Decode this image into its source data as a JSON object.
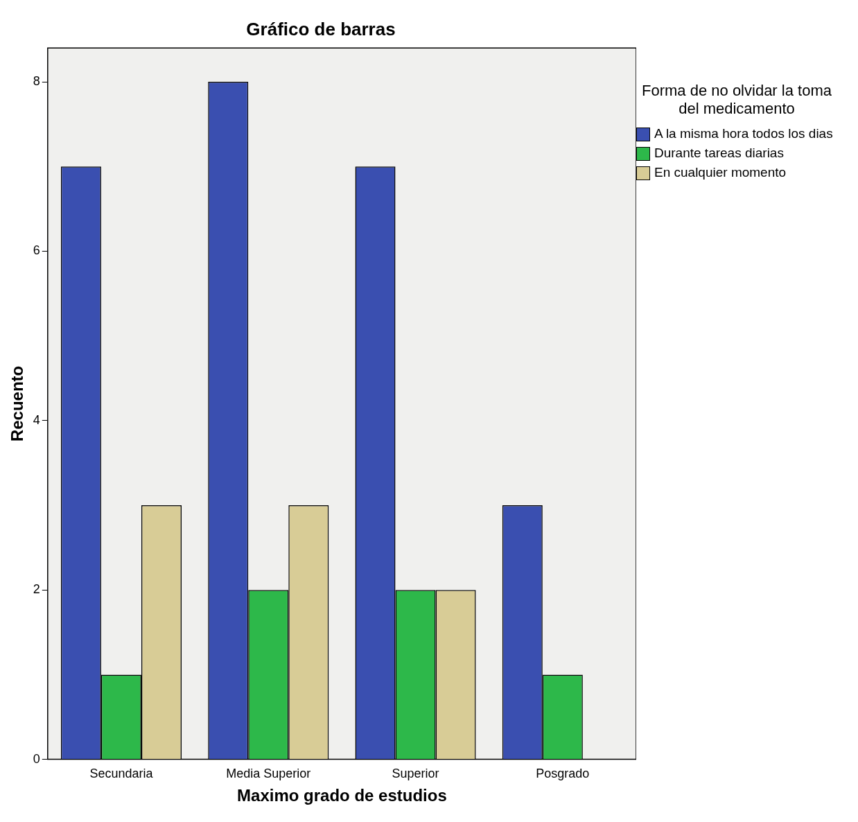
{
  "chart_data": {
    "type": "bar",
    "title": "Gráfico de barras",
    "xlabel": "Maximo grado de estudios",
    "ylabel": "Recuento",
    "legend_title": "Forma de no olvidar la toma del medicamento",
    "categories": [
      "Secundaria",
      "Media Superior",
      "Superior",
      "Posgrado"
    ],
    "series": [
      {
        "name": "A la misma hora todos los dias",
        "color": "#3a4fb0",
        "values": [
          7,
          8,
          7,
          3
        ]
      },
      {
        "name": "Durante tareas diarias",
        "color": "#2db84a",
        "values": [
          1,
          2,
          2,
          1
        ]
      },
      {
        "name": "En cualquier momento",
        "color": "#d8cc96",
        "values": [
          3,
          3,
          2,
          0
        ]
      }
    ],
    "ylim": [
      0,
      8.4
    ],
    "yticks": [
      0,
      2,
      4,
      6,
      8
    ],
    "grid": false,
    "legend": "top right"
  }
}
